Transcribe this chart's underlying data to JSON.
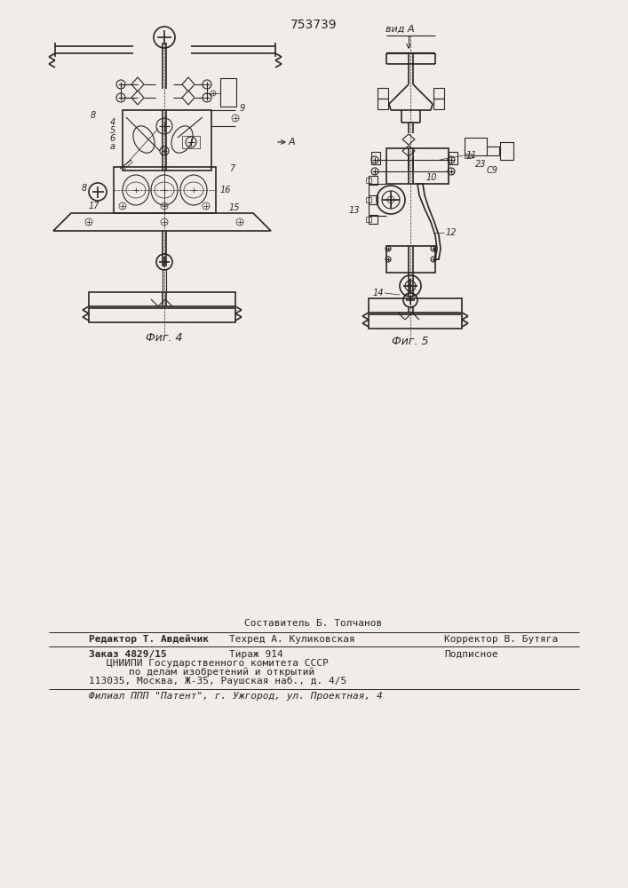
{
  "patent_number": "753739",
  "fig4_label": "Фиг. 4",
  "fig5_label": "Фиг. 5",
  "vid_a_label": "вид А",
  "footer_sostavitel": "Составитель Б. Толчанов",
  "footer_editor": "Редактор Т. Авдейчик",
  "footer_tehred": "Техред А. Куликовская",
  "footer_korrector": "Корректор В. Бутяга",
  "footer_zakaz": "Заказ 4829/15",
  "footer_tirazh": "Тираж 914",
  "footer_podpisnoe": "Подписное",
  "footer_cniipи": "ЦНИИПИ Государственного комитета СССР",
  "footer_podel": "по делам изобретений и открытий",
  "footer_addr": "113035, Москва, Ж-35, Раушская наб., д. 4/5",
  "footer_filial": "Филиал ППП \"Патент\", г. Ужгород, ул. Проектная, 4",
  "bg_color": "#f0ede8",
  "line_color": "#2a2520",
  "fig_width": 7.07,
  "fig_height": 10.0,
  "dpi": 100
}
